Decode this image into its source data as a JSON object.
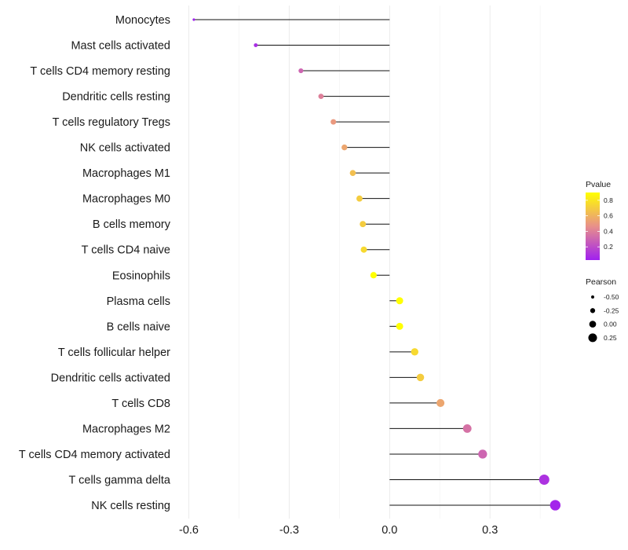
{
  "chart_data": {
    "type": "lollipop",
    "title": "",
    "xlabel": "",
    "ylabel": "",
    "xlim": [
      -0.62,
      0.52
    ],
    "x_ticks": [
      {
        "value": -0.6,
        "label": "-0.6"
      },
      {
        "value": -0.3,
        "label": "-0.3"
      },
      {
        "value": 0.0,
        "label": "0.0"
      },
      {
        "value": 0.3,
        "label": "0.3"
      }
    ],
    "baseline": 0,
    "grid": "vertical",
    "categories": [
      "Monocytes",
      "Mast cells activated",
      "T cells CD4 memory resting",
      "Dendritic cells resting",
      "T cells regulatory  Tregs ",
      "NK cells activated",
      "Macrophages M1",
      "Macrophages M0",
      "B cells memory",
      "T cells CD4 naive",
      "Eosinophils",
      "Plasma cells",
      "B cells naive",
      "T cells follicular helper",
      "Dendritic cells activated",
      "T cells CD8",
      "Macrophages M2",
      "T cells CD4 memory activated",
      "T cells gamma delta",
      "NK cells resting"
    ],
    "pearson": [
      -0.585,
      -0.4,
      -0.265,
      -0.205,
      -0.168,
      -0.135,
      -0.11,
      -0.09,
      -0.08,
      -0.077,
      -0.048,
      0.03,
      0.03,
      0.075,
      0.092,
      0.152,
      0.232,
      0.278,
      0.462,
      0.495
    ],
    "pvalue": [
      0.03,
      0.08,
      0.3,
      0.4,
      0.5,
      0.55,
      0.65,
      0.7,
      0.7,
      0.75,
      0.9,
      0.9,
      0.9,
      0.75,
      0.7,
      0.55,
      0.35,
      0.3,
      0.1,
      0.05
    ],
    "legend": {
      "placement": "right",
      "color": {
        "title": "Pvalue",
        "ticks": [
          "0.8",
          "0.6",
          "0.4",
          "0.2"
        ],
        "tick_values": [
          0.8,
          0.6,
          0.4,
          0.2
        ],
        "range": [
          0.03,
          0.9
        ],
        "low_color": "#a020f0",
        "mid_color": "#e8908a",
        "high_color": "#ffff00"
      },
      "size": {
        "title": "Pearson",
        "labels": [
          "-0.50",
          "-0.25",
          "0.00",
          "0.25"
        ],
        "values": [
          -0.5,
          -0.25,
          0.0,
          0.25
        ]
      }
    }
  }
}
